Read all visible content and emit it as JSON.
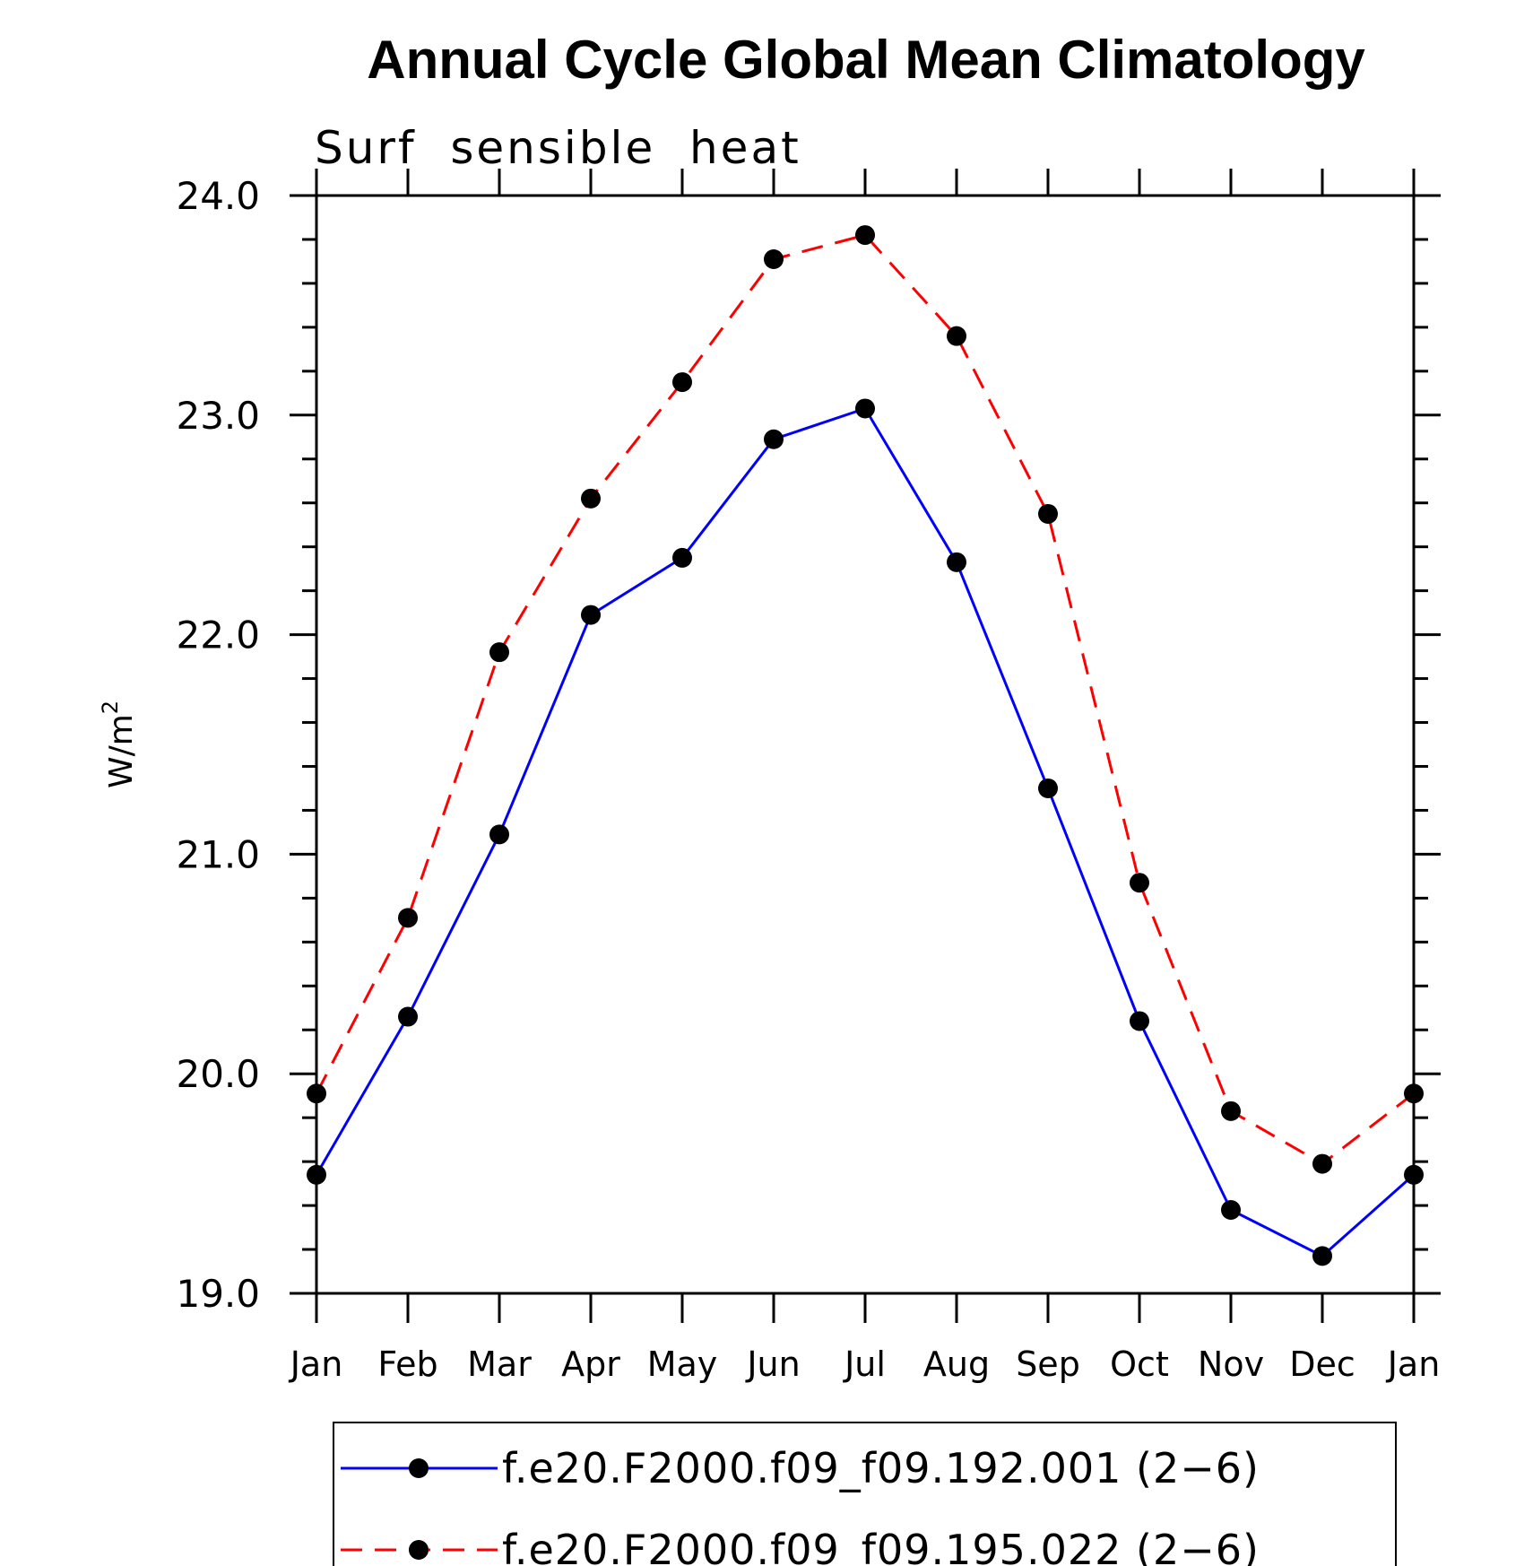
{
  "chart_data": {
    "type": "line",
    "title": "Annual Cycle Global Mean Climatology",
    "subtitle": "Surf  sensible  heat",
    "ylabel": "W/m",
    "ylabel_superscript": "2",
    "xlabel": "",
    "ylim": [
      19.0,
      24.0
    ],
    "yticks": [
      "19.0",
      "20.0",
      "21.0",
      "22.0",
      "23.0",
      "24.0"
    ],
    "categories": [
      "Jan",
      "Feb",
      "Mar",
      "Apr",
      "May",
      "Jun",
      "Jul",
      "Aug",
      "Sep",
      "Oct",
      "Nov",
      "Dec",
      "Jan"
    ],
    "series": [
      {
        "name": "f.e20.F2000.f09_f09.192.001 (2−6)",
        "color": "#0000ff",
        "dash": "solid",
        "values": [
          19.54,
          20.26,
          21.09,
          22.09,
          22.35,
          22.89,
          23.03,
          22.33,
          21.3,
          20.24,
          19.38,
          19.17,
          19.54
        ]
      },
      {
        "name": "f.e20.F2000.f09_f09.195.022 (2−6)",
        "color": "#ff0000",
        "dash": "dashed",
        "values": [
          19.91,
          20.71,
          21.92,
          22.62,
          23.15,
          23.71,
          23.82,
          23.36,
          22.55,
          20.87,
          19.83,
          19.59,
          19.91
        ]
      }
    ],
    "marker_color": "#000000",
    "legend_position": "bottom-center",
    "grid": false
  }
}
